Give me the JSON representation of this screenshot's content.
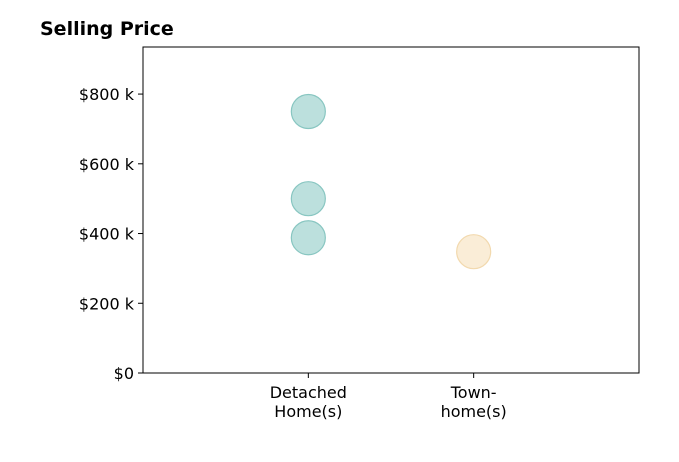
{
  "chart_data": {
    "type": "scatter",
    "title": "Selling Price",
    "xlabel": "",
    "ylabel": "",
    "categories": [
      [
        "Detached",
        "Home(s)"
      ],
      [
        "Town-",
        "home(s)"
      ]
    ],
    "y_ticks": [
      {
        "value": 0,
        "label": "$0"
      },
      {
        "value": 200000,
        "label": "$200 k"
      },
      {
        "value": 400000,
        "label": "$400 k"
      },
      {
        "value": 600000,
        "label": "$600 k"
      },
      {
        "value": 800000,
        "label": "$800 k"
      }
    ],
    "ylim": [
      0,
      935000
    ],
    "xlim": [
      -1,
      2
    ],
    "grid": false,
    "series": [
      {
        "color": "#9fd3cf",
        "edge": "#88c6c1",
        "points": [
          {
            "category": 0,
            "value": 750000
          },
          {
            "category": 0,
            "value": 500000
          },
          {
            "category": 0,
            "value": 388000
          }
        ]
      },
      {
        "color": "#f8e6c6",
        "edge": "#f2d9ae",
        "points": [
          {
            "category": 1,
            "value": 348000
          }
        ]
      }
    ]
  }
}
